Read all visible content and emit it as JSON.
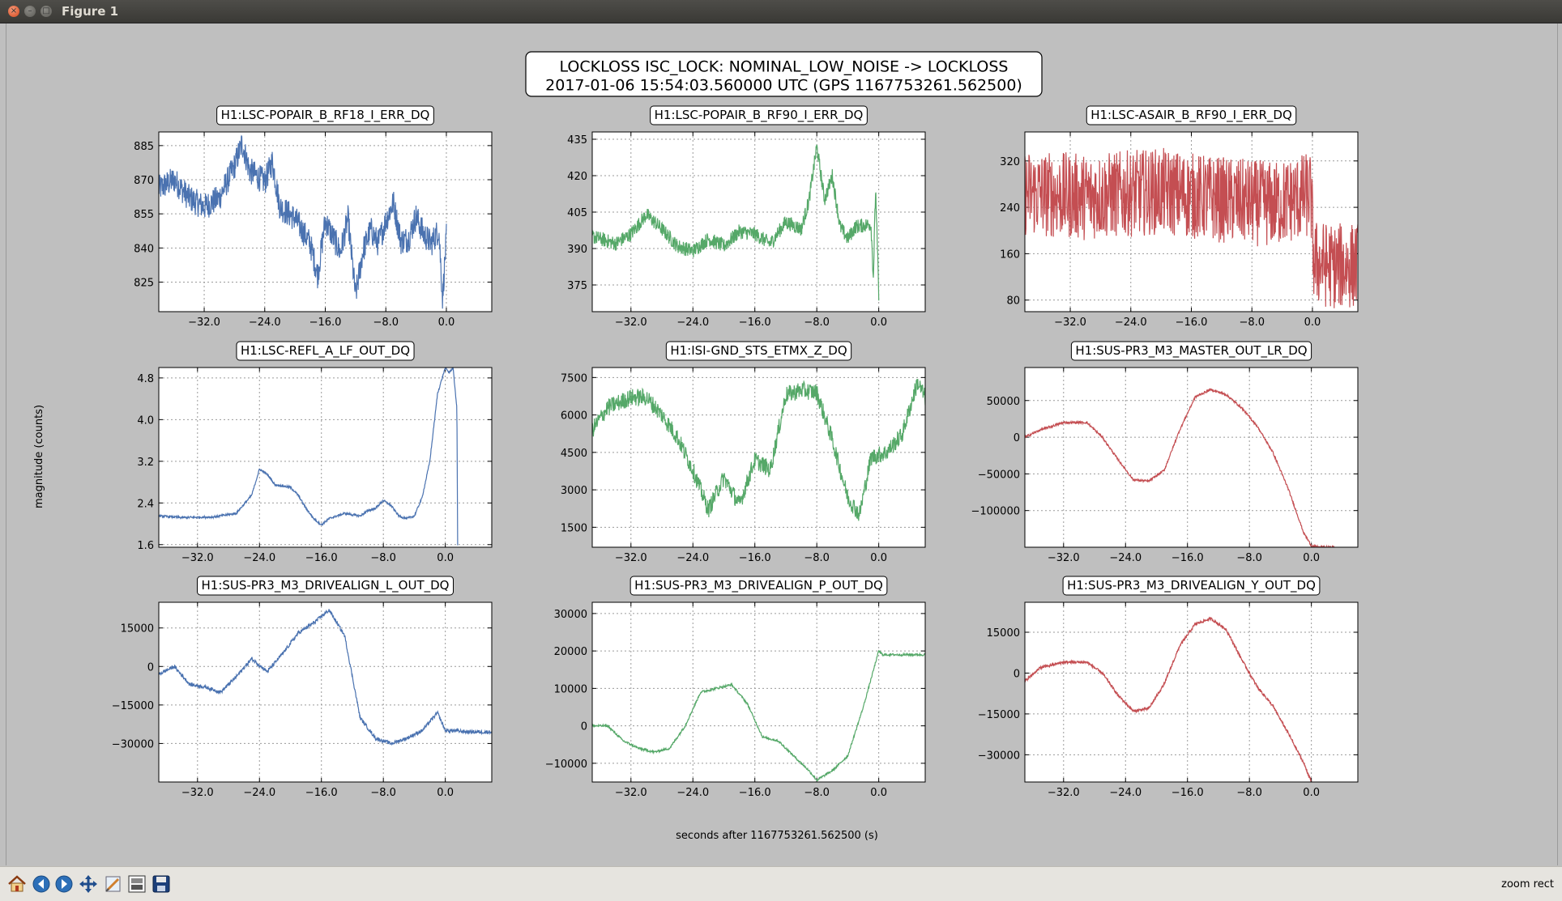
{
  "window": {
    "title": "Figure 1"
  },
  "figure": {
    "suptitle_line1": "LOCKLOSS ISC_LOCK: NOMINAL_LOW_NOISE -> LOCKLOSS",
    "suptitle_line2": "2017-01-06 15:54:03.560000 UTC (GPS 1167753261.562500)",
    "xlabel": "seconds after 1167753261.562500 (s)",
    "ylabel": "magnitude (counts)"
  },
  "colors": {
    "blue": "#4a72b0",
    "green": "#55a868",
    "red": "#c44e52",
    "background": "#bfbfbf"
  },
  "chart_data": [
    {
      "type": "line",
      "title": "H1:LSC-POPAIR_B_RF18_I_ERR_DQ",
      "color": "#4a72b0",
      "xlim": [
        -38,
        6
      ],
      "ylim": [
        812,
        891
      ],
      "xticks": [
        -32,
        -24,
        -16,
        -8,
        0
      ],
      "xtick_labels": [
        "−32.0",
        "−24.0",
        "−16.0",
        "−8.0",
        "0.0"
      ],
      "yticks": [
        825,
        840,
        855,
        870,
        885
      ],
      "ytick_labels": [
        "825",
        "840",
        "855",
        "870",
        "885"
      ],
      "x": [
        -38,
        -36,
        -34,
        -32,
        -30,
        -28,
        -27,
        -26,
        -24,
        -23,
        -22,
        -20,
        -18,
        -17,
        -16,
        -15,
        -14,
        -13,
        -12,
        -11,
        -10,
        -9,
        -8,
        -7,
        -6,
        -5,
        -4,
        -3,
        -2,
        -1,
        -0.5,
        0
      ],
      "y": [
        866,
        870,
        862,
        858,
        862,
        876,
        886,
        874,
        869,
        878,
        858,
        853,
        842,
        828,
        852,
        845,
        838,
        853,
        819,
        839,
        848,
        842,
        852,
        860,
        843,
        844,
        854,
        846,
        842,
        848,
        818,
        845
      ],
      "noise": 6,
      "x_end": 0
    },
    {
      "type": "line",
      "title": "H1:LSC-POPAIR_B_RF90_I_ERR_DQ",
      "color": "#55a868",
      "xlim": [
        -37,
        6
      ],
      "ylim": [
        364,
        438
      ],
      "xticks": [
        -32,
        -24,
        -16,
        -8,
        0
      ],
      "xtick_labels": [
        "−32.0",
        "−24.0",
        "−16.0",
        "−8.0",
        "0.0"
      ],
      "yticks": [
        375,
        390,
        405,
        420,
        435
      ],
      "ytick_labels": [
        "375",
        "390",
        "405",
        "420",
        "435"
      ],
      "x": [
        -37,
        -34,
        -32,
        -30,
        -28,
        -26,
        -24,
        -22,
        -20,
        -18,
        -16,
        -14,
        -12,
        -10,
        -9,
        -8,
        -7,
        -6,
        -5,
        -4,
        -3,
        -1,
        -0.7,
        -0.4,
        0
      ],
      "y": [
        395,
        392,
        396,
        404,
        398,
        391,
        389,
        394,
        391,
        397,
        396,
        392,
        401,
        398,
        410,
        432,
        410,
        420,
        399,
        394,
        399,
        400,
        378,
        415,
        370
      ],
      "noise": 3,
      "x_end": 0
    },
    {
      "type": "line",
      "title": "H1:LSC-ASAIR_B_RF90_I_ERR_DQ",
      "color": "#c44e52",
      "xlim": [
        -38,
        6
      ],
      "ylim": [
        60,
        370
      ],
      "xticks": [
        -32,
        -24,
        -16,
        -8,
        0
      ],
      "xtick_labels": [
        "−32.0",
        "−24.0",
        "−16.0",
        "−8.0",
        "0.0"
      ],
      "yticks": [
        80,
        160,
        240,
        320
      ],
      "ytick_labels": [
        "80",
        "160",
        "240",
        "320"
      ],
      "x": [
        -38,
        -30,
        -20,
        -15,
        -10,
        -5,
        -0.2,
        0.2,
        3,
        6
      ],
      "y": [
        265,
        258,
        268,
        258,
        250,
        245,
        262,
        145,
        138,
        140
      ],
      "noise": 75,
      "x_end": 6
    },
    {
      "type": "line",
      "title": "H1:LSC-REFL_A_LF_OUT_DQ",
      "color": "#4a72b0",
      "xlim": [
        -37,
        6
      ],
      "ylim": [
        1.55,
        5.0
      ],
      "xticks": [
        -32,
        -24,
        -16,
        -8,
        0
      ],
      "xtick_labels": [
        "−32.0",
        "−24.0",
        "−16.0",
        "−8.0",
        "0.0"
      ],
      "yticks": [
        1.6,
        2.4,
        3.2,
        4.0,
        4.8
      ],
      "ytick_labels": [
        "1.6",
        "2.4",
        "3.2",
        "4.0",
        "4.8"
      ],
      "x": [
        -37,
        -34,
        -30,
        -27,
        -25,
        -24,
        -23,
        -22,
        -20,
        -19,
        -18,
        -17,
        -16,
        -15,
        -13,
        -11,
        -10,
        -9,
        -8,
        -7,
        -6,
        -5,
        -4,
        -3,
        -2,
        -1,
        0,
        0.5,
        1,
        1.5,
        1.6
      ],
      "y": [
        2.15,
        2.12,
        2.13,
        2.2,
        2.55,
        3.05,
        2.95,
        2.75,
        2.7,
        2.55,
        2.3,
        2.1,
        1.98,
        2.1,
        2.2,
        2.15,
        2.25,
        2.3,
        2.45,
        2.35,
        2.15,
        2.1,
        2.15,
        2.5,
        3.2,
        4.5,
        5.0,
        4.9,
        5.0,
        4.2,
        1.6
      ],
      "noise": 0.02,
      "x_end": 1.6
    },
    {
      "type": "line",
      "title": "H1:ISI-GND_STS_ETMX_Z_DQ",
      "color": "#55a868",
      "xlim": [
        -37,
        6
      ],
      "ylim": [
        700,
        7900
      ],
      "xticks": [
        -32,
        -24,
        -16,
        -8,
        0
      ],
      "xtick_labels": [
        "−32.0",
        "−24.0",
        "−16.0",
        "−8.0",
        "0.0"
      ],
      "yticks": [
        1500,
        3000,
        4500,
        6000,
        7500
      ],
      "ytick_labels": [
        "1500",
        "3000",
        "4500",
        "6000",
        "7500"
      ],
      "x": [
        -37,
        -35,
        -32,
        -30,
        -28,
        -26,
        -24,
        -22,
        -20,
        -18,
        -16,
        -14,
        -12,
        -10,
        -8,
        -6,
        -4,
        -2.5,
        -1,
        1,
        3,
        5,
        6
      ],
      "y": [
        5400,
        6300,
        6700,
        6700,
        6000,
        5100,
        3800,
        2200,
        3500,
        2400,
        4200,
        3800,
        6800,
        7000,
        6900,
        5000,
        2700,
        2000,
        4300,
        4500,
        5200,
        7300,
        6700
      ],
      "noise": 350,
      "x_end": 6
    },
    {
      "type": "line",
      "title": "H1:SUS-PR3_M3_MASTER_OUT_LR_DQ",
      "color": "#c44e52",
      "xlim": [
        -37,
        6
      ],
      "ylim": [
        -150000,
        95000
      ],
      "xticks": [
        -32,
        -24,
        -16,
        -8,
        0
      ],
      "xtick_labels": [
        "−32.0",
        "−24.0",
        "−16.0",
        "−8.0",
        "0.0"
      ],
      "yticks": [
        -100000,
        -50000,
        0,
        50000
      ],
      "ytick_labels": [
        "−100000",
        "−50000",
        "0",
        "50000"
      ],
      "x": [
        -37,
        -35,
        -32,
        -29,
        -27,
        -25,
        -23,
        -21,
        -19,
        -17,
        -15,
        -13,
        -11,
        -9,
        -7,
        -5,
        -3,
        -1,
        0,
        1,
        3
      ],
      "y": [
        0,
        10000,
        20000,
        20000,
        0,
        -30000,
        -58000,
        -60000,
        -45000,
        10000,
        55000,
        65000,
        58000,
        40000,
        15000,
        -20000,
        -70000,
        -130000,
        -148000,
        -150000,
        -150000
      ],
      "noise": 1500,
      "x_end": 3
    },
    {
      "type": "line",
      "title": "H1:SUS-PR3_M3_DRIVEALIGN_L_OUT_DQ",
      "color": "#4a72b0",
      "xlim": [
        -37,
        6
      ],
      "ylim": [
        -45000,
        25000
      ],
      "xticks": [
        -32,
        -24,
        -16,
        -8,
        0
      ],
      "xtick_labels": [
        "−32.0",
        "−24.0",
        "−16.0",
        "−8.0",
        "0.0"
      ],
      "yticks": [
        -30000,
        -15000,
        0,
        15000
      ],
      "ytick_labels": [
        "−30000",
        "−15000",
        "0",
        "15000"
      ],
      "x": [
        -37,
        -35,
        -33,
        -31,
        -29,
        -27,
        -25,
        -23,
        -21,
        -19,
        -17,
        -15,
        -13,
        -11,
        -9,
        -7,
        -5,
        -3,
        -1,
        0,
        1,
        3,
        6
      ],
      "y": [
        -3000,
        0,
        -7000,
        -8000,
        -10000,
        -4000,
        3000,
        -2000,
        5000,
        13000,
        17000,
        22000,
        12000,
        -20000,
        -28000,
        -30000,
        -28000,
        -25000,
        -18000,
        -25000,
        -25000,
        -25500,
        -25500
      ],
      "noise": 700,
      "x_end": 6
    },
    {
      "type": "line",
      "title": "H1:SUS-PR3_M3_DRIVEALIGN_P_OUT_DQ",
      "color": "#55a868",
      "xlim": [
        -37,
        6
      ],
      "ylim": [
        -15000,
        33000
      ],
      "xticks": [
        -32,
        -24,
        -16,
        -8,
        0
      ],
      "xtick_labels": [
        "−32.0",
        "−24.0",
        "−16.0",
        "−8.0",
        "0.0"
      ],
      "yticks": [
        -10000,
        0,
        10000,
        20000,
        30000
      ],
      "ytick_labels": [
        "−10000",
        "0",
        "10000",
        "20000",
        "30000"
      ],
      "x": [
        -37,
        -35,
        -33,
        -31,
        -29,
        -27,
        -25,
        -23,
        -21,
        -19,
        -17,
        -15,
        -13,
        -11,
        -9,
        -8,
        -6,
        -4,
        -2,
        0,
        0.5,
        3,
        6
      ],
      "y": [
        0,
        0,
        -4000,
        -6000,
        -7000,
        -6000,
        0,
        9000,
        10000,
        11000,
        6000,
        -3000,
        -4000,
        -8000,
        -12000,
        -14500,
        -12000,
        -8000,
        5000,
        20000,
        19000,
        19000,
        19000
      ],
      "noise": 300,
      "x_end": 6
    },
    {
      "type": "line",
      "title": "H1:SUS-PR3_M3_DRIVEALIGN_Y_OUT_DQ",
      "color": "#c44e52",
      "xlim": [
        -37,
        6
      ],
      "ylim": [
        -40000,
        26000
      ],
      "xticks": [
        -32,
        -24,
        -16,
        -8,
        0
      ],
      "xtick_labels": [
        "−32.0",
        "−24.0",
        "−16.0",
        "−8.0",
        "0.0"
      ],
      "yticks": [
        -30000,
        -15000,
        0,
        15000
      ],
      "ytick_labels": [
        "−30000",
        "−15000",
        "0",
        "15000"
      ],
      "x": [
        -37,
        -35,
        -32,
        -29,
        -27,
        -25,
        -23,
        -21,
        -19,
        -17,
        -15,
        -13,
        -11,
        -9,
        -7,
        -5,
        -3,
        -1,
        0
      ],
      "y": [
        -3000,
        2000,
        4000,
        4000,
        0,
        -8000,
        -14000,
        -13000,
        -4000,
        10000,
        18000,
        20000,
        16000,
        5000,
        -5000,
        -12000,
        -22000,
        -33000,
        -40000
      ],
      "noise": 500,
      "x_end": 0
    }
  ],
  "toolbar": {
    "status": "zoom rect"
  }
}
